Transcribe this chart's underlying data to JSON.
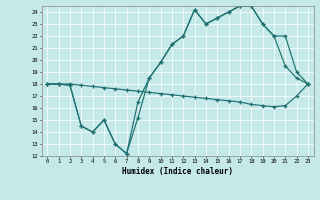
{
  "xlabel": "Humidex (Indice chaleur)",
  "xlim": [
    -0.5,
    23.5
  ],
  "ylim": [
    12,
    24.5
  ],
  "yticks": [
    12,
    13,
    14,
    15,
    16,
    17,
    18,
    19,
    20,
    21,
    22,
    23,
    24
  ],
  "xticks": [
    0,
    1,
    2,
    3,
    4,
    5,
    6,
    7,
    8,
    9,
    10,
    11,
    12,
    13,
    14,
    15,
    16,
    17,
    18,
    19,
    20,
    21,
    22,
    23
  ],
  "background_color": "#c5e8e8",
  "line_color": "#1e7070",
  "line1_x": [
    0,
    1,
    2,
    3,
    4,
    5,
    6,
    7,
    8,
    9,
    10,
    11,
    12,
    13,
    14,
    15,
    16,
    17,
    18,
    19,
    20,
    21,
    22,
    23
  ],
  "line1_y": [
    18.0,
    18.0,
    18.0,
    17.9,
    17.8,
    17.7,
    17.6,
    17.5,
    17.4,
    17.3,
    17.2,
    17.1,
    17.0,
    16.9,
    16.8,
    16.7,
    16.6,
    16.5,
    16.3,
    16.2,
    16.1,
    16.2,
    17.0,
    18.0
  ],
  "line2_x": [
    0,
    1,
    2,
    3,
    4,
    5,
    6,
    7,
    8,
    9,
    10,
    11,
    12,
    13,
    14,
    15,
    16,
    17,
    18,
    19,
    20,
    21,
    22,
    23
  ],
  "line2_y": [
    18.0,
    18.0,
    17.9,
    14.5,
    14.0,
    15.0,
    13.0,
    12.2,
    15.2,
    18.5,
    19.8,
    21.3,
    22.0,
    24.2,
    23.0,
    23.5,
    24.0,
    24.5,
    24.5,
    23.0,
    22.0,
    19.5,
    18.5,
    18.0
  ],
  "line3_x": [
    0,
    1,
    2,
    3,
    4,
    5,
    6,
    7,
    8,
    9,
    10,
    11,
    12,
    13,
    14,
    15,
    16,
    17,
    18,
    19,
    20,
    21,
    22,
    23
  ],
  "line3_y": [
    18.0,
    18.0,
    17.9,
    14.5,
    14.0,
    15.0,
    13.0,
    12.2,
    16.5,
    18.5,
    19.8,
    21.3,
    22.0,
    24.2,
    23.0,
    23.5,
    24.0,
    24.5,
    24.5,
    23.0,
    22.0,
    22.0,
    19.0,
    18.0
  ]
}
